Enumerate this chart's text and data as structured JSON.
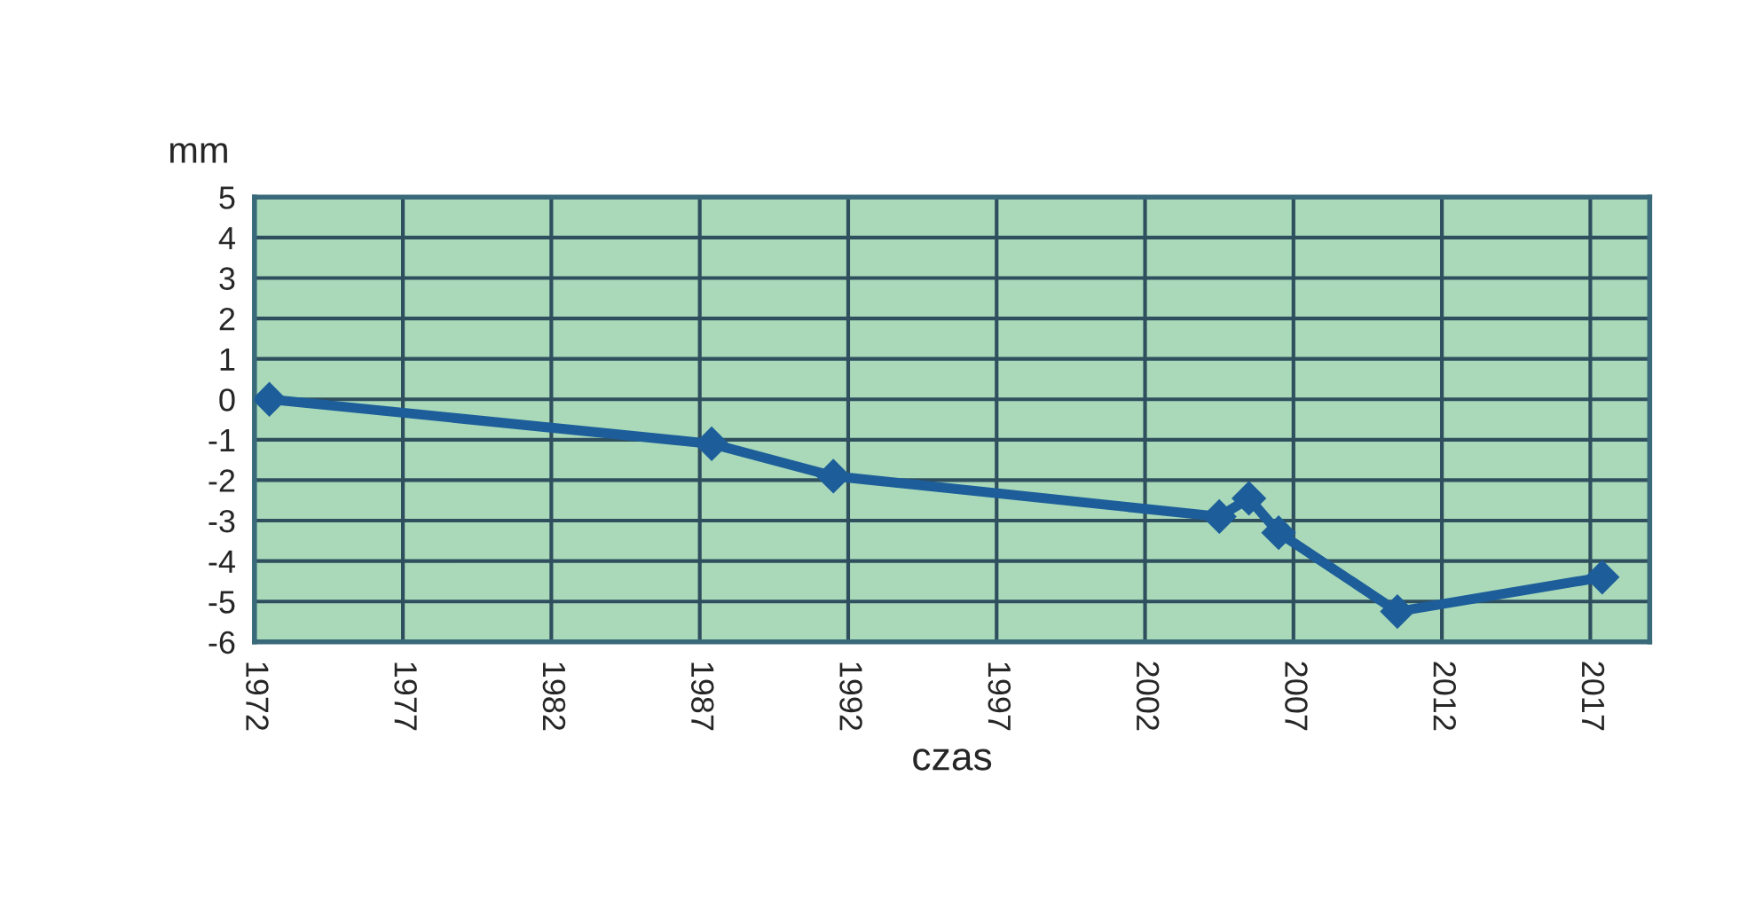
{
  "chart_data": {
    "type": "line",
    "xlabel": "czas",
    "ylabel": "mm",
    "x": [
      1972.5,
      1987.4,
      1991.5,
      2004.5,
      2005.5,
      2006.5,
      2010.5,
      2017.4
    ],
    "series": [
      {
        "color": "#1d5e9a",
        "values": [
          0,
          -1.1,
          -1.9,
          -2.9,
          -2.45,
          -3.3,
          -5.25,
          -4.4
        ]
      }
    ],
    "xlim": [
      1972,
      2019
    ],
    "xticks": [
      1972,
      1977,
      1982,
      1987,
      1992,
      1997,
      2002,
      2007,
      2012,
      2017
    ],
    "ylim": [
      -6,
      5
    ],
    "yticks": [
      -6,
      -5,
      -4,
      -3,
      -2,
      -1,
      0,
      1,
      2,
      3,
      4,
      5
    ],
    "grid": true,
    "marker": "diamond",
    "line_style": "solid"
  }
}
